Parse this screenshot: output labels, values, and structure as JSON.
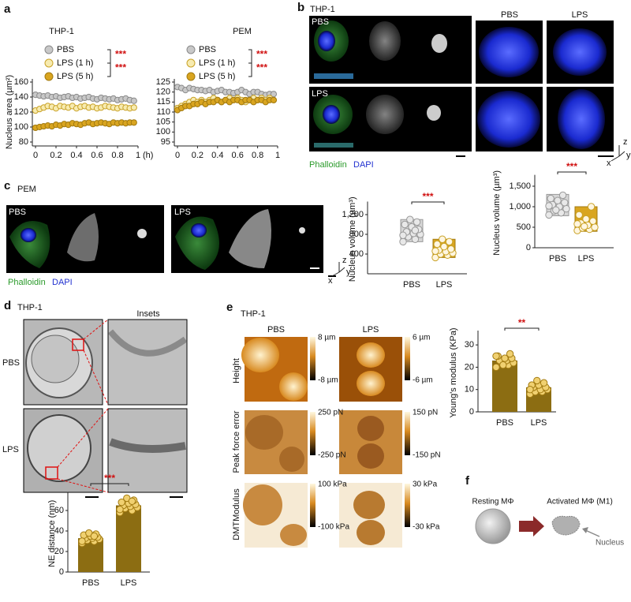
{
  "panel_labels": [
    "a",
    "b",
    "c",
    "d",
    "e",
    "f"
  ],
  "b": {
    "title": "THP-1",
    "image_labels": [
      "PBS",
      "LPS"
    ],
    "headers": [
      "PBS",
      "LPS"
    ],
    "stain": [
      "Phalloidin",
      "DAPI"
    ]
  },
  "c": {
    "title": "PEM",
    "image_labels": [
      "PBS",
      "LPS"
    ],
    "stain": [
      "Phalloidin",
      "DAPI"
    ]
  },
  "d": {
    "title": "THP-1",
    "insets": "Insets",
    "rows": [
      "PBS",
      "LPS"
    ]
  },
  "e": {
    "title": "THP-1",
    "columns": [
      "PBS",
      "LPS"
    ],
    "rows": [
      "Height",
      "Peak force error",
      "DMTModulus"
    ],
    "colorbars": [
      [
        "8 µm",
        "-8 µm"
      ],
      [
        "6 µm",
        "-6 µm"
      ],
      [
        "250 pN",
        "-250 pN"
      ],
      [
        "150 pN",
        "-150 pN"
      ],
      [
        "100 kPa",
        "-100 kPa"
      ],
      [
        "30 kPa",
        "-30 kPa"
      ]
    ]
  },
  "f": {
    "resting": "Resting MΦ",
    "activated": "Activated MΦ (M1)",
    "nucleus": "Nucleus"
  },
  "axis_indicator": [
    "z",
    "y",
    "x"
  ],
  "chart_data": [
    {
      "type": "scatter",
      "title": "THP-1",
      "ylabel": "Nucleus area (µm²)",
      "xlabel": "(h)",
      "legend": "upper left",
      "x": [
        0,
        0.04,
        0.08,
        0.12,
        0.16,
        0.2,
        0.24,
        0.28,
        0.32,
        0.36,
        0.4,
        0.44,
        0.48,
        0.52,
        0.56,
        0.6,
        0.64,
        0.68,
        0.72,
        0.76,
        0.8,
        0.84,
        0.88,
        0.92,
        0.96
      ],
      "series": [
        {
          "name": "PBS",
          "color": "#c8c8c8",
          "edge": "#8a8a8a",
          "values": [
            143,
            142,
            141,
            142,
            140,
            141,
            139,
            140,
            141,
            139,
            140,
            138,
            139,
            140,
            138,
            137,
            139,
            138,
            137,
            138,
            136,
            137,
            138,
            136,
            135
          ]
        },
        {
          "name": "LPS (1 h)",
          "color": "#f7ebb0",
          "edge": "#c9a227",
          "values": [
            122,
            124,
            126,
            128,
            127,
            125,
            128,
            127,
            126,
            128,
            125,
            127,
            128,
            126,
            127,
            125,
            126,
            128,
            127,
            126,
            125,
            127,
            126,
            125,
            126
          ]
        },
        {
          "name": "LPS (5 h)",
          "color": "#d9a520",
          "edge": "#a27a10",
          "values": [
            99,
            100,
            101,
            102,
            101,
            103,
            102,
            104,
            103,
            105,
            104,
            103,
            105,
            106,
            104,
            105,
            106,
            105,
            104,
            106,
            105,
            106,
            105,
            106,
            106
          ]
        }
      ],
      "xlim": [
        0,
        1
      ],
      "xticks": [
        0,
        0.2,
        0.4,
        0.6,
        0.8,
        1
      ],
      "ylim": [
        80,
        160
      ],
      "yticks": [
        80,
        100,
        120,
        140,
        160
      ],
      "annotations": [
        "***",
        "***"
      ]
    },
    {
      "type": "scatter",
      "title": "PEM",
      "legend": "upper left",
      "x": [
        0,
        0.04,
        0.08,
        0.12,
        0.16,
        0.2,
        0.24,
        0.28,
        0.32,
        0.36,
        0.4,
        0.44,
        0.48,
        0.52,
        0.56,
        0.6,
        0.64,
        0.68,
        0.72,
        0.76,
        0.8,
        0.84,
        0.88,
        0.92,
        0.96
      ],
      "series": [
        {
          "name": "PBS",
          "color": "#c8c8c8",
          "edge": "#8a8a8a",
          "values": [
            122.5,
            122,
            121,
            122,
            121.5,
            121,
            121,
            120.5,
            121,
            120,
            120.5,
            121,
            120,
            120,
            119.5,
            120,
            121,
            120,
            119,
            120,
            120,
            119,
            118.5,
            119,
            119
          ]
        },
        {
          "name": "LPS (1 h)",
          "color": "#f7ebb0",
          "edge": "#c9a227",
          "values": [
            112,
            113,
            114,
            115,
            116,
            115,
            116,
            115,
            116,
            117,
            116,
            115,
            116,
            117,
            116,
            117,
            116,
            115,
            116,
            117,
            116,
            117,
            116,
            117,
            116
          ]
        },
        {
          "name": "LPS (5 h)",
          "color": "#d9a520",
          "edge": "#a27a10",
          "values": [
            111,
            112,
            113,
            113,
            114,
            114,
            115,
            114,
            115,
            115,
            116,
            115,
            116,
            115,
            116,
            116,
            115,
            116,
            116,
            115,
            116,
            116,
            115,
            116,
            116
          ]
        }
      ],
      "xlim": [
        0,
        1
      ],
      "xticks": [
        0,
        0.2,
        0.4,
        0.6,
        0.8,
        1
      ],
      "ylim": [
        95,
        125
      ],
      "yticks": [
        95,
        100,
        105,
        110,
        115,
        120,
        125
      ],
      "annotations": [
        "***",
        "***"
      ]
    },
    {
      "type": "box",
      "ylabel": "Nucleus volume (µm³)",
      "categories": [
        "PBS",
        "LPS"
      ],
      "colors": [
        "#d6d6d6",
        "#d9a520"
      ],
      "boxes": [
        {
          "low": 650,
          "high": 1100
        },
        {
          "low": 330,
          "high": 700
        }
      ],
      "points": [
        [
          650,
          700,
          750,
          800,
          820,
          850,
          900,
          950,
          1000,
          1050,
          1100,
          780,
          880
        ],
        [
          330,
          380,
          400,
          420,
          450,
          480,
          500,
          550,
          600,
          650,
          700,
          460
        ]
      ],
      "ylim": [
        0,
        1400
      ],
      "yticks": [
        400,
        800,
        {
          "value": 1200,
          "label": "1,200"
        }
      ],
      "annotation": "***"
    },
    {
      "type": "box",
      "ylabel": "Nucleus volume (µm³)",
      "categories": [
        "PBS",
        "LPS"
      ],
      "colors": [
        "#d6d6d6",
        "#d9a520"
      ],
      "boxes": [
        {
          "low": 780,
          "high": 1300
        },
        {
          "low": 400,
          "high": 1000
        }
      ],
      "points": [
        [
          800,
          850,
          900,
          950,
          1000,
          1050,
          1100,
          1150,
          1200,
          1280,
          920,
          1020
        ],
        [
          420,
          450,
          480,
          500,
          550,
          600,
          650,
          700,
          800,
          1000,
          520,
          580
        ]
      ],
      "ylim": [
        0,
        1700
      ],
      "yticks": [
        0,
        500,
        {
          "value": 1000,
          "label": "1,000"
        },
        {
          "value": 1500,
          "label": "1,500"
        }
      ],
      "annotation": "***"
    },
    {
      "type": "bar",
      "ylabel": "NE distance (nm)",
      "categories": [
        "PBS",
        "LPS"
      ],
      "color": "#8c6d12",
      "values": [
        33,
        65
      ],
      "points": [
        [
          28,
          30,
          31,
          32,
          33,
          33,
          34,
          35,
          36,
          37,
          38,
          30,
          35
        ],
        [
          58,
          60,
          62,
          63,
          64,
          65,
          66,
          67,
          68,
          70,
          72,
          61,
          69
        ]
      ],
      "ylim": [
        0,
        75
      ],
      "yticks": [
        0,
        20,
        40,
        60
      ],
      "annotation": "***"
    },
    {
      "type": "bar",
      "ylabel": "Young's modulus (KPa)",
      "categories": [
        "PBS",
        "LPS"
      ],
      "color": "#8c6d12",
      "values": [
        23,
        11
      ],
      "points": [
        [
          20,
          21,
          22,
          22,
          23,
          23,
          24,
          24,
          25,
          26,
          21,
          25
        ],
        [
          8,
          9,
          9,
          10,
          10,
          11,
          11,
          12,
          12,
          13,
          14,
          10
        ]
      ],
      "ylim": [
        0,
        35
      ],
      "yticks": [
        0,
        10,
        20,
        30
      ],
      "annotation": "**"
    }
  ]
}
